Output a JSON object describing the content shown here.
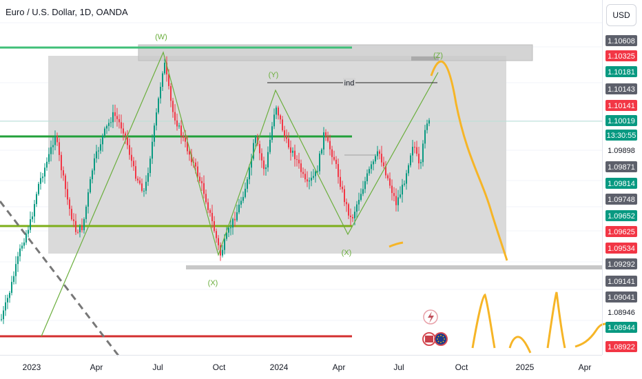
{
  "header": {
    "title": "Euro / U.S. Dollar, 1D, OANDA",
    "currency_button": "USD"
  },
  "chart_data": {
    "type": "candlestick",
    "symbol": "Euro / U.S. Dollar",
    "interval": "1D",
    "source": "OANDA",
    "y_range": [
      1.08922,
      1.10608
    ],
    "x_ticks": [
      "2023",
      "Apr",
      "Jul",
      "Oct",
      "2024",
      "Apr",
      "Jul",
      "Oct",
      "2025",
      "Apr"
    ],
    "price_labels": [
      {
        "value": "1.10608",
        "color": "#5d606b"
      },
      {
        "value": "1.10325",
        "color": "#f23645"
      },
      {
        "value": "1.10181",
        "color": "#089981"
      },
      {
        "value": "1.10143",
        "color": "#5d606b"
      },
      {
        "value": "1.10141",
        "color": "#f23645"
      },
      {
        "value": "1.10019",
        "color": "#089981"
      },
      {
        "value": "1.09898",
        "color": "#ffffff"
      },
      {
        "value": "1.09871",
        "color": "#5d606b"
      },
      {
        "value": "1.09814",
        "color": "#089981"
      },
      {
        "value": "1.09748",
        "color": "#5d606b"
      },
      {
        "value": "1.09652",
        "color": "#089981"
      },
      {
        "value": "1.09625",
        "color": "#f23645"
      },
      {
        "value": "1.09534",
        "color": "#f23645"
      },
      {
        "value": "1.09292",
        "color": "#5d606b"
      },
      {
        "value": "1.09141",
        "color": "#5d606b"
      },
      {
        "value": "1.09041",
        "color": "#5d606b"
      },
      {
        "value": "1.08946",
        "color": "#ffffff"
      },
      {
        "value": "1.08944",
        "color": "#089981"
      },
      {
        "value": "1.08922",
        "color": "#f23645"
      }
    ],
    "countdown": "13:30:55",
    "wave_labels": [
      "(W)",
      "(Y)",
      "(X)",
      "(X)",
      "(Z)"
    ],
    "annotation": "ind",
    "colors": {
      "up": "#089981",
      "down": "#f23645",
      "forecast": "#f6b527",
      "wave": "#6aae3c",
      "support": "#2ea043",
      "resistance": "#d32f2f"
    }
  }
}
